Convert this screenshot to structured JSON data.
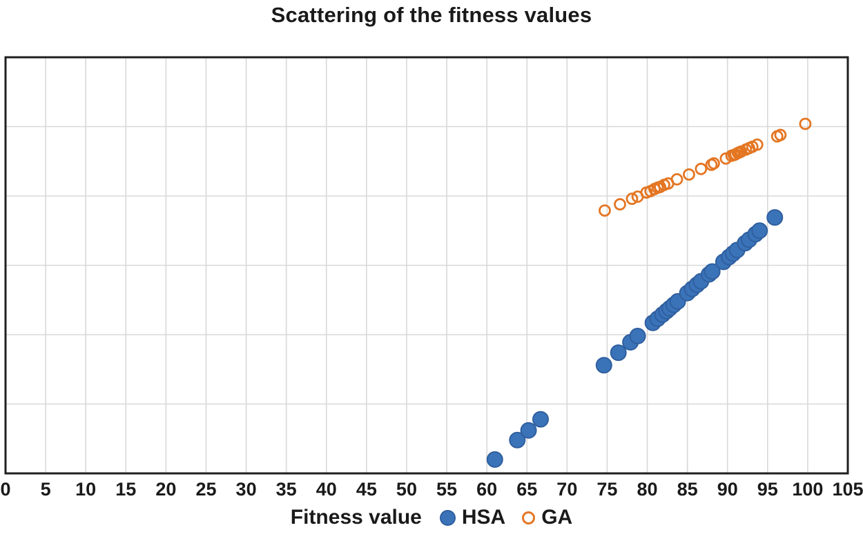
{
  "title": "Scattering of the fitness values",
  "colors": {
    "hsa_fill": "#3B73B9",
    "hsa_stroke": "#2F5F9E",
    "ga_stroke": "#E47623",
    "grid": "#D8D8D8",
    "plot_border": "#1F1F1F",
    "text": "#1A1A1A"
  },
  "chart_data": {
    "type": "scatter",
    "title": "Scattering of the fitness values",
    "xlabel": "Fitness value",
    "ylabel": "",
    "xlim": [
      0,
      105
    ],
    "ylim": [
      0,
      30
    ],
    "x_ticks": [
      0,
      5,
      10,
      15,
      20,
      25,
      30,
      35,
      40,
      45,
      50,
      55,
      60,
      65,
      70,
      75,
      80,
      85,
      90,
      95,
      100,
      105
    ],
    "y_grid_step": 5,
    "grid": true,
    "y_axis_labels_visible": false,
    "legend_position": "bottom",
    "series": [
      {
        "name": "HSA",
        "marker": "filled-circle",
        "fill": "#3B73B9",
        "stroke": "#2F5F9E",
        "radius": 11,
        "points": [
          [
            61.0,
            1.0
          ],
          [
            63.8,
            2.4
          ],
          [
            65.2,
            3.1
          ],
          [
            66.7,
            3.9
          ],
          [
            74.6,
            7.8
          ],
          [
            76.4,
            8.7
          ],
          [
            77.9,
            9.45
          ],
          [
            78.8,
            9.9
          ],
          [
            80.7,
            10.85
          ],
          [
            81.3,
            11.15
          ],
          [
            81.9,
            11.45
          ],
          [
            82.4,
            11.7
          ],
          [
            82.8,
            11.9
          ],
          [
            83.3,
            12.15
          ],
          [
            83.8,
            12.4
          ],
          [
            85.0,
            13.0
          ],
          [
            85.6,
            13.3
          ],
          [
            86.2,
            13.6
          ],
          [
            86.7,
            13.85
          ],
          [
            87.7,
            14.35
          ],
          [
            88.1,
            14.55
          ],
          [
            89.5,
            15.25
          ],
          [
            90.2,
            15.6
          ],
          [
            90.7,
            15.85
          ],
          [
            91.2,
            16.1
          ],
          [
            92.2,
            16.6
          ],
          [
            92.7,
            16.85
          ],
          [
            93.5,
            17.25
          ],
          [
            94.0,
            17.5
          ],
          [
            95.9,
            18.45
          ]
        ]
      },
      {
        "name": "GA",
        "marker": "open-circle",
        "fill": "none",
        "stroke": "#E47623",
        "radius": 7.5,
        "points": [
          [
            74.7,
            18.95
          ],
          [
            76.6,
            19.4
          ],
          [
            78.1,
            19.8
          ],
          [
            78.8,
            19.95
          ],
          [
            79.9,
            20.25
          ],
          [
            80.4,
            20.35
          ],
          [
            80.9,
            20.5
          ],
          [
            81.3,
            20.6
          ],
          [
            81.6,
            20.65
          ],
          [
            82.1,
            20.8
          ],
          [
            82.6,
            20.9
          ],
          [
            83.7,
            21.2
          ],
          [
            85.2,
            21.55
          ],
          [
            86.7,
            21.95
          ],
          [
            88.0,
            22.25
          ],
          [
            88.3,
            22.35
          ],
          [
            89.8,
            22.7
          ],
          [
            90.5,
            22.9
          ],
          [
            90.8,
            22.95
          ],
          [
            91.0,
            23.0
          ],
          [
            91.3,
            23.1
          ],
          [
            91.5,
            23.15
          ],
          [
            91.7,
            23.2
          ],
          [
            92.3,
            23.35
          ],
          [
            92.7,
            23.45
          ],
          [
            93.1,
            23.55
          ],
          [
            93.7,
            23.7
          ],
          [
            96.2,
            24.3
          ],
          [
            96.6,
            24.4
          ],
          [
            99.7,
            25.2
          ]
        ]
      }
    ]
  },
  "legend": {
    "hsa_label": "HSA",
    "ga_label": "GA"
  }
}
